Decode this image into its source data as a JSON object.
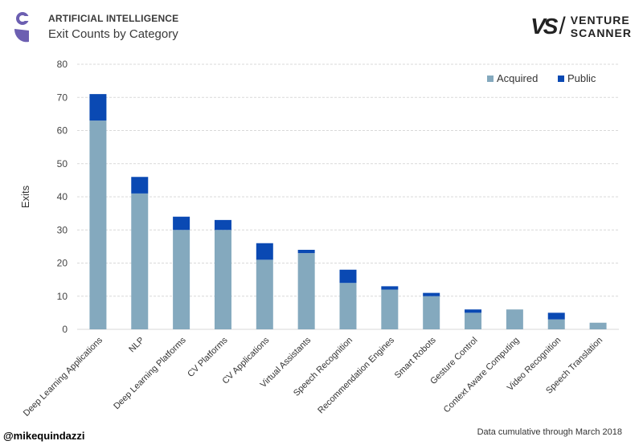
{
  "header": {
    "kicker": "ARTIFICIAL INTELLIGENCE",
    "title": "Exit Counts by Category"
  },
  "brand": {
    "mark": "VS",
    "line1": "VENTURE",
    "line2": "SCANNER"
  },
  "footer": {
    "handle": "@mikequindazzi",
    "note": "Data cumulative through March 2018"
  },
  "colors": {
    "acquired": "#84a9be",
    "public": "#0a49b3",
    "grid": "#d9d9d9",
    "logo": "#6c5fb1"
  },
  "chart_data": {
    "type": "bar",
    "stacked": true,
    "title": "Exit Counts by Category",
    "xlabel": "",
    "ylabel": "Exits",
    "ylim": [
      0,
      80
    ],
    "yticks": [
      0,
      10,
      20,
      30,
      40,
      50,
      60,
      70,
      80
    ],
    "grid": true,
    "legend_position": "top-right",
    "categories": [
      "Deep Learning Applications",
      "NLP",
      "Deep Learning Platforms",
      "CV Platforms",
      "CV Applications",
      "Virtual Assistants",
      "Speech Recognition",
      "Recommendation Engines",
      "Smart Robots",
      "Gesture Control",
      "Context Aware Computing",
      "Video Recognition",
      "Speech Translation"
    ],
    "series": [
      {
        "name": "Acquired",
        "values": [
          63,
          41,
          30,
          30,
          21,
          23,
          14,
          12,
          10,
          5,
          6,
          3,
          2
        ]
      },
      {
        "name": "Public",
        "values": [
          8,
          5,
          4,
          3,
          5,
          1,
          4,
          1,
          1,
          1,
          0,
          2,
          0
        ]
      }
    ]
  }
}
